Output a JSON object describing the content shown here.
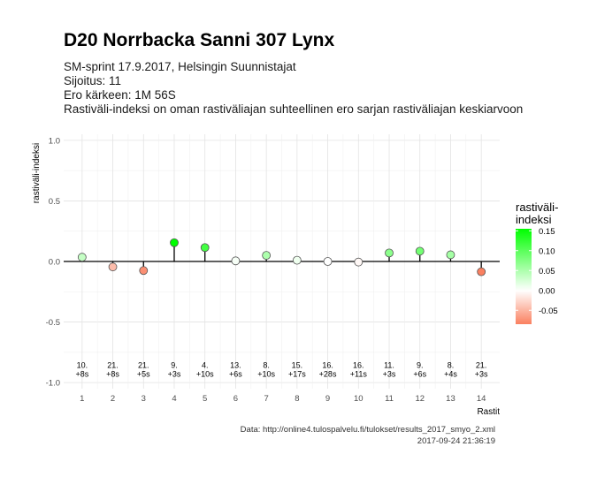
{
  "header": {
    "title": "D20 Norrbacka Sanni 307 Lynx",
    "subtitle_lines": [
      "SM-sprint 17.9.2017, Helsingin Suunnistajat",
      "Sijoitus: 11",
      "Ero kärkeen: 1M 56S",
      "Rastiväli-indeksi on oman rastiväliajan suhteellinen ero sarjan rastiväliajan keskiarvoon"
    ]
  },
  "chart_data": {
    "type": "scatter",
    "title": "D20 Norrbacka Sanni 307 Lynx",
    "xlabel": "Rastit",
    "ylabel": "rastiväli-indeksi",
    "ylim": [
      -1.05,
      1.05
    ],
    "y_ticks": [
      -1.0,
      -0.5,
      0.0,
      0.5,
      1.0
    ],
    "y_tick_labels": [
      "-1.0",
      "-0.5",
      "0.0",
      "0.5",
      "1.0"
    ],
    "x": [
      1,
      2,
      3,
      4,
      5,
      6,
      7,
      8,
      9,
      10,
      11,
      12,
      13,
      14
    ],
    "x_tick_labels": [
      "1",
      "2",
      "3",
      "4",
      "5",
      "6",
      "7",
      "8",
      "9",
      "10",
      "11",
      "12",
      "13",
      "14"
    ],
    "values": [
      0.035,
      -0.045,
      -0.075,
      0.155,
      0.115,
      0.005,
      0.05,
      0.01,
      0.0,
      -0.005,
      0.07,
      0.085,
      0.055,
      -0.085
    ],
    "annotations_rank": [
      "10.",
      "21.",
      "21.",
      "9.",
      "4.",
      "13.",
      "8.",
      "15.",
      "16.",
      "16.",
      "11.",
      "9.",
      "8.",
      "21."
    ],
    "annotations_diff": [
      "+8s",
      "+8s",
      "+5s",
      "+3s",
      "+10s",
      "+6s",
      "+10s",
      "+17s",
      "+28s",
      "+11s",
      "+3s",
      "+6s",
      "+4s",
      "+3s"
    ],
    "grid": true,
    "legend": {
      "title_lines": [
        "rastiväli-",
        "indeksi"
      ],
      "position": "right",
      "range": [
        -0.085,
        0.155
      ],
      "ticks": [
        0.15,
        0.1,
        0.05,
        0.0,
        -0.05
      ],
      "tick_labels": [
        "0.15",
        "0.10",
        "0.05",
        "0.00",
        "-0.05"
      ],
      "colors": {
        "high": "#00ff00",
        "mid": "#ffffff",
        "low": "#fa8060"
      }
    }
  },
  "caption": {
    "source": "Data: http://online4.tulospalvelu.fi/tulokset/results_2017_smyo_2.xml",
    "timestamp": "2017-09-24 21:36:19"
  }
}
